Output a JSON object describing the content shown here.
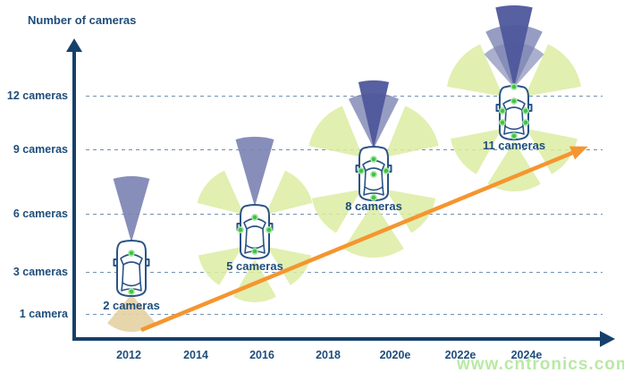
{
  "title": "Number of cameras",
  "watermark": "www.cntronics.com",
  "colors": {
    "navy_text": "#1e4d7b",
    "axis": "#16406b",
    "grid": "#7191b0",
    "orange": "#f5952f",
    "purple": "#7d84b3",
    "purple_dark": "#4e579b",
    "green_cone": "#dcecA2",
    "tan_cone": "#e5d2a5",
    "dot": "#3fc24c",
    "dot_ring": "#a5e79e",
    "car_outline": "#2a5486",
    "watermark_green": "#b9e9a4"
  },
  "chart_data": {
    "type": "scatter",
    "title": "Number of cameras",
    "ylabel": "Number of cameras",
    "x_ticks": [
      "2012",
      "2014",
      "2016",
      "2018",
      "2020e",
      "2022e",
      "2024e"
    ],
    "y_ticks": [
      "1 camera",
      "3 cameras",
      "6 cameras",
      "9 cameras",
      "12 cameras"
    ],
    "grid": true,
    "legend": "none",
    "points": [
      {
        "year": "2012",
        "cameras": 2,
        "label": "2 cameras"
      },
      {
        "year": "2016",
        "cameras": 5,
        "label": "5 cameras"
      },
      {
        "year": "2019",
        "cameras": 8,
        "label": "8 cameras"
      },
      {
        "year": "2023",
        "cameras": 11,
        "label": "11 cameras"
      }
    ],
    "trend": "increasing orange arrow from (2012, ~1 camera) to (2024e, ~9 cameras)"
  }
}
